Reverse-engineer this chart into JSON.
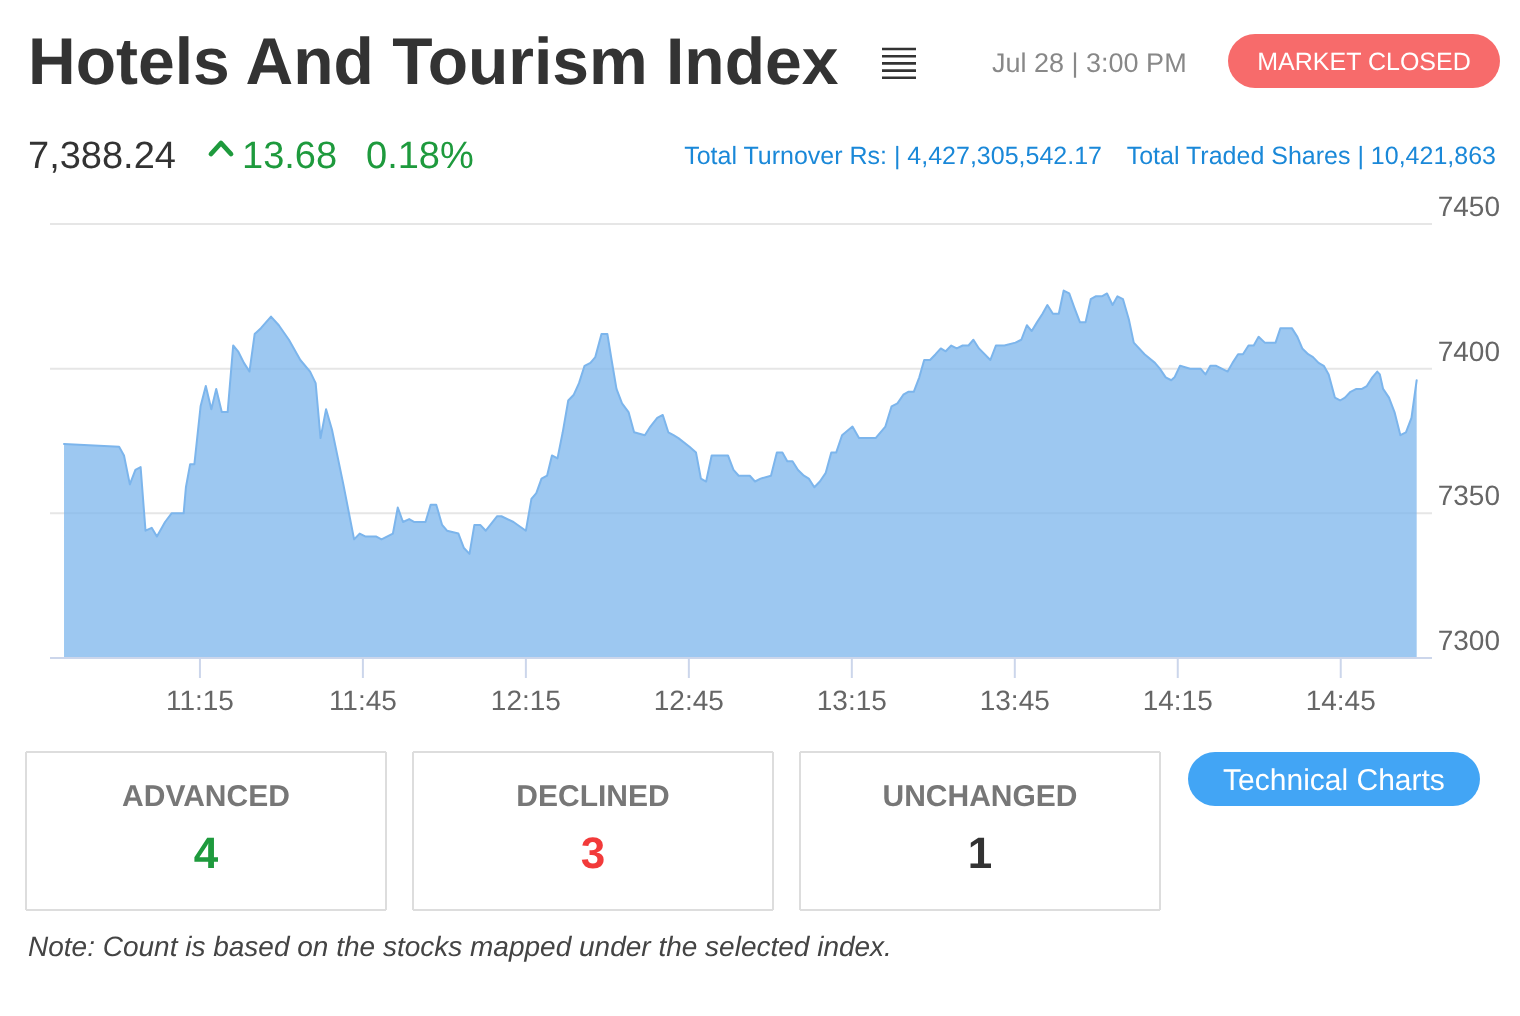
{
  "chart_data": [
    {
      "type": "area",
      "title": "Hotels And Tourism Index",
      "annotations": [
        "Jul 28 | 3:00 PM",
        "MARKET CLOSED",
        "7,388.24",
        "13.68",
        "0.18%",
        "Total Turnover Rs: | 4,427,305,542.17",
        "Total Traded Shares | 10,421,863"
      ],
      "x": [
        10.833,
        11.002,
        11.017,
        11.035,
        11.052,
        11.068,
        11.083,
        11.102,
        11.118,
        11.143,
        11.163,
        11.2,
        11.207,
        11.22,
        11.233,
        11.252,
        11.268,
        11.285,
        11.3,
        11.317,
        11.335,
        11.352,
        11.367,
        11.385,
        11.402,
        11.418,
        11.437,
        11.468,
        11.492,
        11.523,
        11.558,
        11.588,
        11.605,
        11.62,
        11.637,
        11.655,
        11.69,
        11.723,
        11.74,
        11.757,
        11.79,
        11.807,
        11.842,
        11.857,
        11.873,
        11.892,
        11.908,
        11.942,
        11.958,
        11.975,
        11.993,
        12.008,
        12.043,
        12.06,
        12.077,
        12.092,
        12.11,
        12.127,
        12.162,
        12.175,
        12.212,
        12.25,
        12.267,
        12.282,
        12.298,
        12.315,
        12.33,
        12.347,
        12.363,
        12.38,
        12.397,
        12.413,
        12.43,
        12.448,
        12.463,
        12.482,
        12.5,
        12.513,
        12.528,
        12.545,
        12.565,
        12.582,
        12.615,
        12.632,
        12.653,
        12.67,
        12.687,
        12.703,
        12.718,
        12.752,
        12.772,
        12.787,
        12.803,
        12.82,
        12.87,
        12.887,
        12.903,
        12.937,
        12.953,
        12.97,
        13.002,
        13.02,
        13.037,
        13.052,
        13.068,
        13.085,
        13.103,
        13.118,
        13.135,
        13.152,
        13.17,
        13.187,
        13.202,
        13.22,
        13.252,
        13.272,
        13.323,
        13.353,
        13.372,
        13.39,
        13.408,
        13.423,
        13.44,
        13.457,
        13.472,
        13.49,
        13.507,
        13.523,
        13.538,
        13.555,
        13.572,
        13.59,
        13.608,
        13.623,
        13.64,
        13.675,
        13.692,
        13.718,
        13.752,
        13.77,
        13.787,
        13.802,
        13.818,
        13.835,
        13.85,
        13.867,
        13.885,
        13.9,
        13.917,
        13.933,
        13.95,
        13.967,
        13.983,
        13.998,
        14.017,
        14.033,
        14.05,
        14.065,
        14.082,
        14.1,
        14.115,
        14.148,
        14.18,
        14.195,
        14.213,
        14.23,
        14.24,
        14.257,
        14.288,
        14.32,
        14.335,
        14.35,
        14.368,
        14.403,
        14.418,
        14.435,
        14.45,
        14.467,
        14.483,
        14.498,
        14.517,
        14.55,
        14.565,
        14.6,
        14.617,
        14.632,
        14.65,
        14.665,
        14.682,
        14.698,
        14.713,
        14.732,
        14.748,
        14.763,
        14.78,
        14.798,
        14.815,
        14.83,
        14.847,
        14.862,
        14.87,
        14.88,
        14.898,
        14.915,
        14.933,
        14.95,
        14.967,
        14.983
      ],
      "values": [
        7374,
        7373,
        7370,
        7360,
        7365,
        7366,
        7344,
        7345,
        7342,
        7347,
        7350,
        7350,
        7359,
        7367,
        7367,
        7387,
        7394,
        7386,
        7393,
        7385,
        7385,
        7408,
        7406,
        7402,
        7399,
        7412,
        7414,
        7418,
        7415,
        7410,
        7403,
        7399,
        7395,
        7376,
        7386,
        7379,
        7360,
        7341,
        7343,
        7342,
        7342,
        7341,
        7343,
        7352,
        7347,
        7348,
        7347,
        7347,
        7353,
        7353,
        7346,
        7344,
        7343,
        7338,
        7336,
        7346,
        7346,
        7344,
        7349,
        7349,
        7347,
        7344,
        7355,
        7357,
        7362,
        7363,
        7370,
        7369,
        7378,
        7389,
        7391,
        7395,
        7401,
        7402,
        7404,
        7412,
        7412,
        7403,
        7393,
        7388,
        7385,
        7378,
        7377,
        7380,
        7383,
        7384,
        7378,
        7377,
        7376,
        7373,
        7371,
        7362,
        7361,
        7370,
        7370,
        7365,
        7363,
        7363,
        7361,
        7362,
        7363,
        7371,
        7371,
        7368,
        7368,
        7365,
        7363,
        7362,
        7359,
        7361,
        7364,
        7371,
        7371,
        7377,
        7380,
        7376,
        7376,
        7380,
        7387,
        7388,
        7391,
        7392,
        7392,
        7397,
        7403,
        7403,
        7405,
        7407,
        7406,
        7408,
        7407,
        7408,
        7408,
        7410,
        7407,
        7403,
        7408,
        7408,
        7409,
        7410,
        7415,
        7413,
        7416,
        7419,
        7422,
        7419,
        7419,
        7427,
        7426,
        7421,
        7416,
        7416,
        7424,
        7425,
        7425,
        7426,
        7422,
        7425,
        7424,
        7417,
        7409,
        7405,
        7402,
        7400,
        7397,
        7396,
        7397,
        7401,
        7400,
        7400,
        7398,
        7401,
        7401,
        7399,
        7402,
        7405,
        7405,
        7408,
        7408,
        7411,
        7409,
        7409,
        7414,
        7414,
        7411,
        7407,
        7405,
        7404,
        7402,
        7401,
        7398,
        7390,
        7389,
        7390,
        7392,
        7393,
        7393,
        7394,
        7397,
        7399,
        7398,
        7393,
        7390,
        7385,
        7377,
        7378,
        7383,
        7396
      ],
      "color": "#7cb5ec",
      "xlim": [
        10.79,
        15.03
      ],
      "ylim": [
        7300,
        7450
      ],
      "xticks": [
        {
          "value": 11.25,
          "label": "11:15"
        },
        {
          "value": 11.75,
          "label": "11:45"
        },
        {
          "value": 12.25,
          "label": "12:15"
        },
        {
          "value": 12.75,
          "label": "12:45"
        },
        {
          "value": 13.25,
          "label": "13:15"
        },
        {
          "value": 13.75,
          "label": "13:45"
        },
        {
          "value": 14.25,
          "label": "14:15"
        },
        {
          "value": 14.75,
          "label": "14:45"
        }
      ],
      "yticks": [
        7300,
        7350,
        7400,
        7450
      ],
      "grid": "y"
    },
    {
      "type": "other",
      "categories": [
        "ADVANCED",
        "DECLINED",
        "UNCHANGED"
      ],
      "values": [
        4,
        3,
        1
      ],
      "colors": [
        "#1e9a3d",
        "#f23a3a",
        "#333333"
      ],
      "data_labels": true,
      "annotations": [
        "Technical Charts",
        "Note: Count is based on the stocks mapped under the selected index."
      ]
    }
  ]
}
